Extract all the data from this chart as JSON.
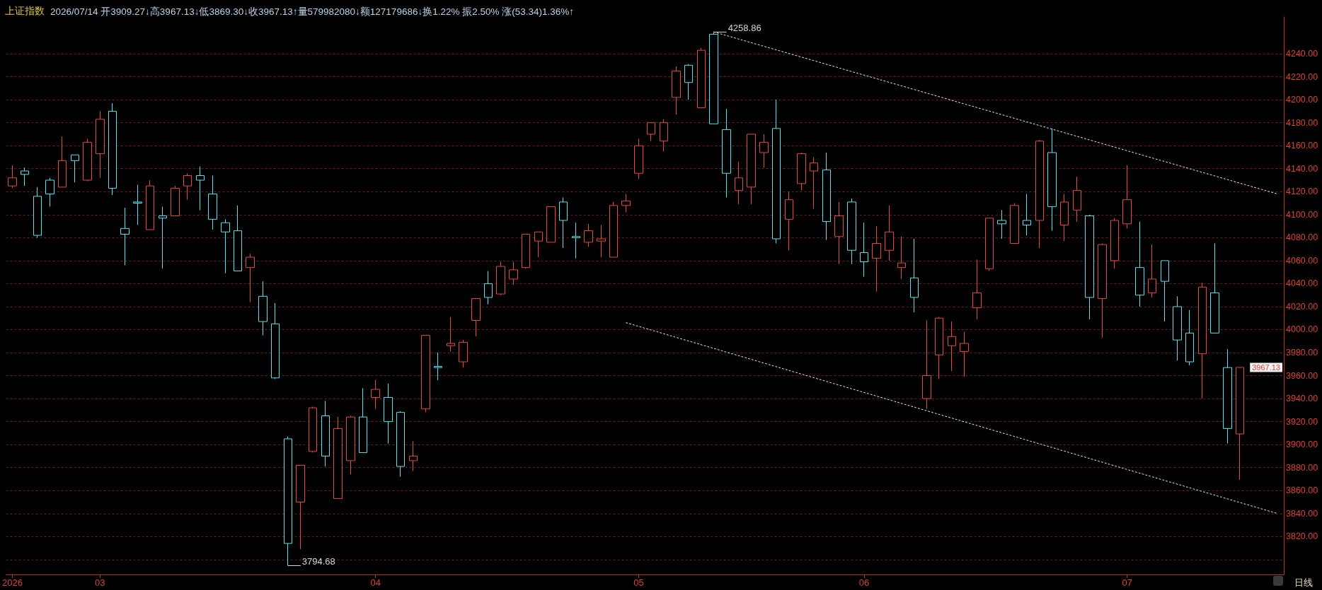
{
  "chart_data": {
    "type": "candlestick",
    "title": "上证指数",
    "subtitle": "2026/07/14 开3909.27↓高3967.13↓低3869.30↓收3967.13↑量579982080↓额127179686↓换1.22% 振2.50% 涨(53.34)1.36%↑",
    "categories": [
      "2026",
      null,
      null,
      null,
      null,
      null,
      null,
      "03",
      null,
      null,
      null,
      null,
      null,
      null,
      null,
      null,
      null,
      null,
      null,
      null,
      null,
      null,
      null,
      null,
      null,
      null,
      null,
      null,
      null,
      "04",
      null,
      null,
      null,
      null,
      null,
      null,
      null,
      null,
      null,
      null,
      null,
      null,
      null,
      null,
      null,
      null,
      null,
      null,
      null,
      null,
      "05",
      null,
      null,
      null,
      null,
      null,
      null,
      null,
      null,
      null,
      null,
      null,
      null,
      null,
      null,
      null,
      null,
      null,
      "06",
      null,
      null,
      null,
      null,
      null,
      null,
      null,
      null,
      null,
      null,
      null,
      null,
      null,
      null,
      null,
      null,
      null,
      null,
      null,
      null,
      "07",
      null,
      null,
      null,
      null,
      null,
      null,
      null,
      null,
      null,
      null,
      null,
      null
    ],
    "ohlc": [
      [
        4125,
        4143,
        4123,
        4132
      ],
      [
        4138,
        4141,
        4125,
        4135
      ],
      [
        4116,
        4124,
        4080,
        4082
      ],
      [
        4130,
        4132,
        4107,
        4118
      ],
      [
        4124,
        4168,
        4124,
        4147
      ],
      [
        4152,
        4152,
        4128,
        4147
      ],
      [
        4130,
        4166,
        4129,
        4163
      ],
      [
        4153,
        4190,
        4132,
        4183
      ],
      [
        4190,
        4197,
        4117,
        4123
      ],
      [
        4088,
        4106,
        4056,
        4083
      ],
      [
        4111,
        4126,
        4091,
        4110
      ],
      [
        4087,
        4130,
        4087,
        4125
      ],
      [
        4099,
        4107,
        4053,
        4097
      ],
      [
        4099,
        4125,
        4099,
        4123
      ],
      [
        4125,
        4136,
        4113,
        4134
      ],
      [
        4134,
        4142,
        4104,
        4130
      ],
      [
        4118,
        4134,
        4087,
        4096
      ],
      [
        4093,
        4096,
        4049,
        4085
      ],
      [
        4086,
        4108,
        4051,
        4051
      ],
      [
        4054,
        4066,
        4024,
        4063
      ],
      [
        4029,
        4042,
        3995,
        4007
      ],
      [
        4005,
        4023,
        3957,
        3958
      ],
      [
        3905,
        3907,
        3794.68,
        3814
      ],
      [
        3850,
        3882,
        3809,
        3882
      ],
      [
        3894,
        3933,
        3893,
        3932
      ],
      [
        3925,
        3938,
        3881,
        3890
      ],
      [
        3853,
        3924,
        3853,
        3914
      ],
      [
        3886,
        3925,
        3874,
        3924
      ],
      [
        3924,
        3949,
        3893,
        3893
      ],
      [
        3941,
        3956,
        3931,
        3948
      ],
      [
        3941,
        3953,
        3901,
        3920
      ],
      [
        3928,
        3929,
        3872,
        3881
      ],
      [
        3886,
        3903,
        3877,
        3890
      ],
      [
        3931,
        3995,
        3928,
        3995
      ],
      [
        3968,
        3980,
        3956,
        3967
      ],
      [
        3986,
        4011,
        3981,
        3988
      ],
      [
        3972,
        3991,
        3967,
        3989
      ],
      [
        4008,
        4027,
        3994,
        4027
      ],
      [
        4040,
        4051,
        4022,
        4028
      ],
      [
        4031,
        4059,
        4030,
        4055
      ],
      [
        4044,
        4059,
        4039,
        4052
      ],
      [
        4054,
        4083,
        4053,
        4083
      ],
      [
        4077,
        4085,
        4063,
        4085
      ],
      [
        4076,
        4107,
        4076,
        4107
      ],
      [
        4111,
        4115,
        4071,
        4095
      ],
      [
        4081,
        4093,
        4062,
        4080
      ],
      [
        4076,
        4092,
        4072,
        4086
      ],
      [
        4077,
        4091,
        4063,
        4079
      ],
      [
        4063,
        4111,
        4063,
        4108
      ],
      [
        4108,
        4118,
        4102,
        4112
      ],
      [
        4136,
        4166,
        4131,
        4160
      ],
      [
        4170,
        4180,
        4164,
        4180
      ],
      [
        4164,
        4183,
        4155,
        4180
      ],
      [
        4202,
        4229,
        4187,
        4225
      ],
      [
        4230,
        4231,
        4200,
        4215
      ],
      [
        4193,
        4245,
        4193,
        4243
      ],
      [
        4257,
        4258.86,
        4179,
        4179
      ],
      [
        4174,
        4192,
        4115,
        4136
      ],
      [
        4121,
        4146,
        4109,
        4132
      ],
      [
        4124,
        4170,
        4109,
        4170
      ],
      [
        4154,
        4170,
        4141,
        4163
      ],
      [
        4175,
        4200,
        4075,
        4079
      ],
      [
        4096,
        4120,
        4069,
        4113
      ],
      [
        4127,
        4154,
        4121,
        4153
      ],
      [
        4138,
        4150,
        4105,
        4145
      ],
      [
        4139,
        4154,
        4078,
        4094
      ],
      [
        4081,
        4111,
        4057,
        4099
      ],
      [
        4111,
        4114,
        4057,
        4069
      ],
      [
        4067,
        4093,
        4046,
        4059
      ],
      [
        4062,
        4090,
        4033,
        4075
      ],
      [
        4069,
        4108,
        4060,
        4085
      ],
      [
        4054,
        4081,
        4044,
        4058
      ],
      [
        4045,
        4079,
        4015,
        4028
      ],
      [
        3940,
        4008,
        3931,
        3960
      ],
      [
        3978,
        4011,
        3957,
        4010
      ],
      [
        3986,
        4007,
        3964,
        3994
      ],
      [
        3981,
        3998,
        3959,
        3988
      ],
      [
        4019,
        4061,
        4009,
        4032
      ],
      [
        4053,
        4097,
        4051,
        4097
      ],
      [
        4095,
        4104,
        4079,
        4092
      ],
      [
        4075,
        4110,
        4075,
        4108
      ],
      [
        4095,
        4118,
        4082,
        4091
      ],
      [
        4095,
        4165,
        4071,
        4164
      ],
      [
        4154,
        4175,
        4086,
        4107
      ],
      [
        4091,
        4118,
        4077,
        4111
      ],
      [
        4104,
        4133,
        4094,
        4121
      ],
      [
        4099,
        4100,
        4009,
        4028
      ],
      [
        4027,
        4075,
        3993,
        4074
      ],
      [
        4060,
        4097,
        4053,
        4095
      ],
      [
        4092,
        4143,
        4088,
        4113
      ],
      [
        4054,
        4094,
        4020,
        4030
      ],
      [
        4032,
        4074,
        4028,
        4044
      ],
      [
        4060,
        4060,
        4007,
        4042
      ],
      [
        4020,
        4029,
        3973,
        3991
      ],
      [
        3997,
        4017,
        3969,
        3972
      ],
      [
        3979,
        4041,
        3940,
        4037
      ],
      [
        4032,
        4075,
        3997,
        3997
      ],
      [
        3967,
        3983,
        3901,
        3914
      ],
      [
        3909.27,
        3967.13,
        3869.3,
        3967.13
      ],
      null,
      null,
      null
    ],
    "colors": [
      "#e8463e",
      "#5ce1f0",
      "#5ce1f0",
      "#5ce1f0",
      "#e8463e",
      "#5ce1f0",
      "#e8463e",
      "#e8463e",
      "#5ce1f0",
      "#5ce1f0",
      "#5ce1f0",
      "#e8463e",
      "#5ce1f0",
      "#e8463e",
      "#e8463e",
      "#5ce1f0",
      "#5ce1f0",
      "#5ce1f0",
      "#5ce1f0",
      "#e8463e",
      "#5ce1f0",
      "#5ce1f0",
      "#5ce1f0",
      "#e8463e",
      "#e8463e",
      "#5ce1f0",
      "#e8463e",
      "#e8463e",
      "#5ce1f0",
      "#e8463e",
      "#5ce1f0",
      "#5ce1f0",
      "#e8463e",
      "#e8463e",
      "#5ce1f0",
      "#e8463e",
      "#e8463e",
      "#e8463e",
      "#5ce1f0",
      "#e8463e",
      "#e8463e",
      "#e8463e",
      "#e8463e",
      "#e8463e",
      "#5ce1f0",
      "#5ce1f0",
      "#e8463e",
      "#e8463e",
      "#e8463e",
      "#e8463e",
      "#e8463e",
      "#e8463e",
      "#e8463e",
      "#e8463e",
      "#5ce1f0",
      "#e8463e",
      "#5ce1f0",
      "#5ce1f0",
      "#e8463e",
      "#e8463e",
      "#e8463e",
      "#5ce1f0",
      "#e8463e",
      "#e8463e",
      "#e8463e",
      "#5ce1f0",
      "#e8463e",
      "#5ce1f0",
      "#5ce1f0",
      "#e8463e",
      "#e8463e",
      "#e8463e",
      "#5ce1f0",
      "#e8463e",
      "#e8463e",
      "#e8463e",
      "#e8463e",
      "#e8463e",
      "#e8463e",
      "#5ce1f0",
      "#e8463e",
      "#5ce1f0",
      "#e8463e",
      "#5ce1f0",
      "#e8463e",
      "#e8463e",
      "#5ce1f0",
      "#e8463e",
      "#e8463e",
      "#e8463e",
      "#5ce1f0",
      "#e8463e",
      "#5ce1f0",
      "#5ce1f0",
      "#5ce1f0",
      "#e8463e",
      "#5ce1f0",
      "#5ce1f0",
      "#e8463e",
      null,
      null,
      null
    ],
    "series": [
      {
        "type": "line",
        "color": "#e8e8e8",
        "line_style": "dotted",
        "marker": "none",
        "values": [
          null,
          null,
          null,
          null,
          null,
          null,
          null,
          null,
          null,
          null,
          null,
          null,
          null,
          null,
          null,
          null,
          null,
          null,
          null,
          null,
          null,
          null,
          null,
          null,
          null,
          null,
          null,
          null,
          null,
          null,
          null,
          null,
          null,
          null,
          null,
          null,
          null,
          null,
          null,
          null,
          null,
          null,
          null,
          null,
          null,
          null,
          null,
          null,
          null,
          null,
          null,
          null,
          null,
          null,
          null,
          null,
          4259,
          null,
          null,
          null,
          null,
          null,
          null,
          null,
          null,
          null,
          null,
          null,
          null,
          null,
          null,
          null,
          null,
          null,
          null,
          null,
          null,
          null,
          null,
          null,
          null,
          null,
          null,
          null,
          null,
          null,
          null,
          null,
          null,
          null,
          null,
          null,
          null,
          null,
          null,
          null,
          null,
          null,
          null,
          null,
          null,
          4118
        ]
      },
      {
        "type": "line",
        "color": "#e8e8e8",
        "line_style": "dotted",
        "marker": "none",
        "values": [
          null,
          null,
          null,
          null,
          null,
          null,
          null,
          null,
          null,
          null,
          null,
          null,
          null,
          null,
          null,
          null,
          null,
          null,
          null,
          null,
          null,
          null,
          null,
          null,
          null,
          null,
          null,
          null,
          null,
          null,
          null,
          null,
          null,
          null,
          null,
          null,
          null,
          null,
          null,
          null,
          null,
          null,
          null,
          null,
          null,
          null,
          null,
          null,
          null,
          4006,
          null,
          null,
          null,
          null,
          null,
          null,
          null,
          null,
          null,
          null,
          null,
          null,
          null,
          null,
          null,
          null,
          null,
          null,
          null,
          null,
          null,
          null,
          null,
          null,
          null,
          null,
          null,
          null,
          null,
          null,
          null,
          null,
          null,
          null,
          null,
          null,
          null,
          null,
          null,
          null,
          null,
          null,
          null,
          null,
          null,
          null,
          null,
          null,
          null,
          null,
          null,
          3840
        ]
      }
    ],
    "ylim": [
      3787,
      4272
    ],
    "yticks": [
      {
        "value": 3800,
        "label": null
      },
      {
        "value": 3820,
        "label": "3820.00"
      },
      {
        "value": 3840,
        "label": "3840.00"
      },
      {
        "value": 3860,
        "label": "3860.00"
      },
      {
        "value": 3880,
        "label": "3880.00"
      },
      {
        "value": 3900,
        "label": "3900.00"
      },
      {
        "value": 3920,
        "label": "3920.00"
      },
      {
        "value": 3940,
        "label": "3940.00"
      },
      {
        "value": 3960,
        "label": "3960.00"
      },
      {
        "value": 3980,
        "label": "3980.00"
      },
      {
        "value": 4000,
        "label": "4000.00"
      },
      {
        "value": 4020,
        "label": "4020.00"
      },
      {
        "value": 4040,
        "label": "4040.00"
      },
      {
        "value": 4060,
        "label": "4060.00"
      },
      {
        "value": 4080,
        "label": "4080.00"
      },
      {
        "value": 4100,
        "label": "4100.00"
      },
      {
        "value": 4120,
        "label": "4120.00"
      },
      {
        "value": 4140,
        "label": "4140.00"
      },
      {
        "value": 4160,
        "label": "4160.00"
      },
      {
        "value": 4180,
        "label": "4180.00"
      },
      {
        "value": 4200,
        "label": "4200.00"
      },
      {
        "value": 4220,
        "label": "4220.00"
      },
      {
        "value": 4240,
        "label": "4240.00"
      }
    ],
    "grid": "y",
    "annotations": [
      "4258.86",
      "3794.68",
      "3967.13",
      "日线"
    ]
  }
}
